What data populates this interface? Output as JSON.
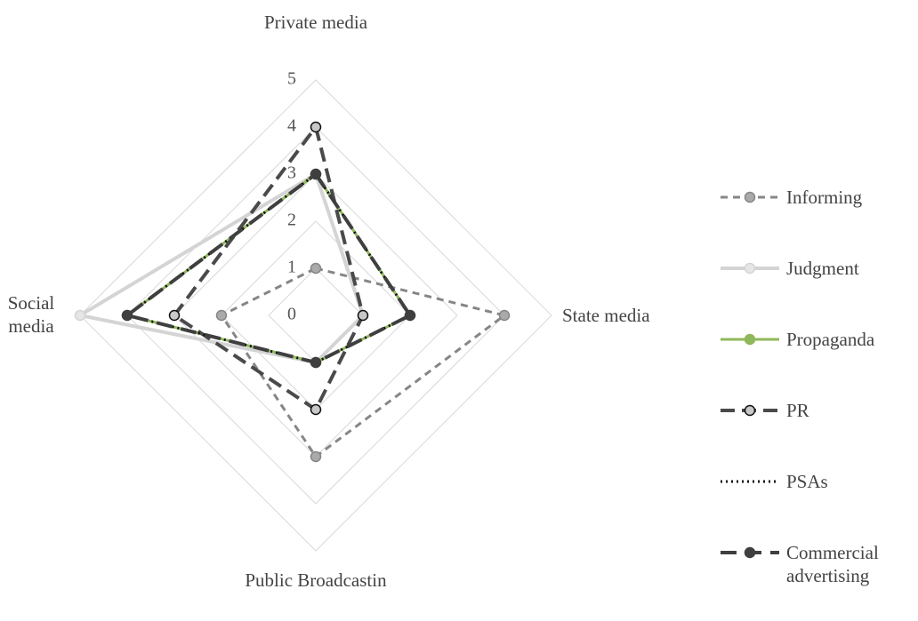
{
  "chart_data": {
    "type": "radar",
    "categories": [
      "Private media",
      "State media",
      "Public Broadcastin",
      "Social media"
    ],
    "ylim": [
      0,
      5
    ],
    "yticks": [
      0,
      1,
      2,
      3,
      4,
      5
    ],
    "grid": true,
    "legend": "right",
    "series": [
      {
        "name": "Informing",
        "color": "#868686",
        "values": [
          1,
          4,
          3,
          2
        ]
      },
      {
        "name": "Judgment",
        "color": "#d4d4d4",
        "values": [
          3,
          1,
          1,
          5
        ]
      },
      {
        "name": "Propaganda",
        "color": "#8fb85a",
        "values": [
          3,
          2,
          1,
          4
        ]
      },
      {
        "name": "PR",
        "color": "#4a4a4a",
        "values": [
          4,
          1,
          2,
          3
        ]
      },
      {
        "name": "PSAs",
        "color": "#111111",
        "values": [
          3,
          2,
          1,
          4
        ]
      },
      {
        "name": "Commercial advertising",
        "color": "#3f3f3f",
        "values": [
          3,
          2,
          1,
          4
        ]
      }
    ]
  }
}
